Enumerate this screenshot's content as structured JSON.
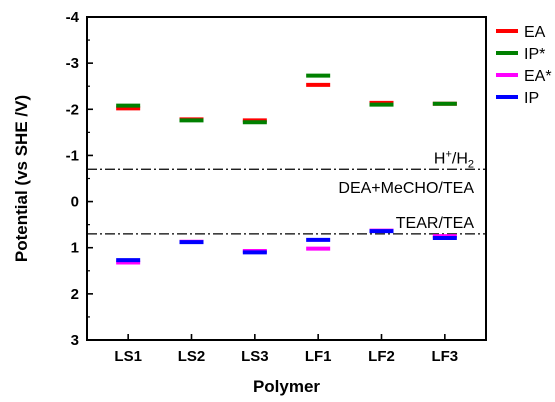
{
  "chart_data": {
    "type": "scatter",
    "xlabel": "Polymer",
    "ylabel": "Potential (vs SHE /V)",
    "ylim": [
      3,
      -4
    ],
    "y_reversed": true,
    "yticks": [
      "-4",
      "-3",
      "-2",
      "-1",
      "0",
      "1",
      "2",
      "3"
    ],
    "categories": [
      "LS1",
      "LS2",
      "LS3",
      "LF1",
      "LF2",
      "LF3"
    ],
    "grid": false,
    "legend_position": "top-right",
    "series": [
      {
        "name": "EA",
        "color": "#ff0000",
        "values": [
          -2.02,
          -1.78,
          -1.76,
          -2.53,
          -2.14,
          -2.12
        ]
      },
      {
        "name": "IP*",
        "color": "#008000",
        "values": [
          -2.08,
          -1.76,
          -1.72,
          -2.73,
          -2.1,
          -2.12
        ]
      },
      {
        "name": "EA*",
        "color": "#ff00ff",
        "values": [
          1.32,
          0.87,
          1.07,
          1.02,
          0.63,
          0.75
        ]
      },
      {
        "name": "IP",
        "color": "#0000ff",
        "values": [
          1.27,
          0.88,
          1.1,
          0.83,
          0.64,
          0.79
        ]
      }
    ],
    "reference_lines": [
      {
        "y": -0.7,
        "label": "H",
        "sup": "+",
        "label_end": "/H",
        "sub": "2"
      },
      {
        "y": 0.7,
        "label": "TEAR/TEA"
      }
    ],
    "region_label": "DEA+MeCHO/TEA"
  }
}
